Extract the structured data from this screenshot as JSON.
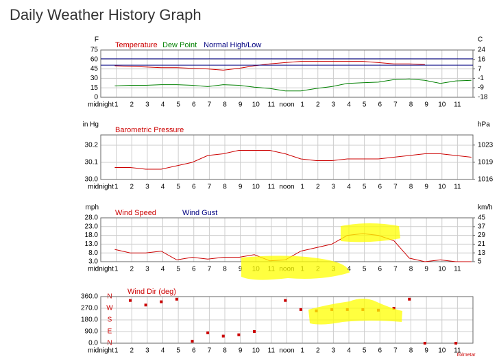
{
  "title": "Daily Weather History Graph",
  "footer_note": "Ifolmetar",
  "chart_data": [
    {
      "type": "line",
      "y_label": "F",
      "y2_label": "C",
      "grid": true,
      "xlim": [
        0,
        24
      ],
      "xticks": [
        {
          "value": 0,
          "label": "midnight"
        },
        1,
        2,
        3,
        4,
        5,
        6,
        7,
        8,
        9,
        10,
        11,
        {
          "value": 12,
          "label": "noon"
        },
        {
          "value": 13,
          "label": "1"
        },
        {
          "value": 14,
          "label": "2"
        },
        {
          "value": 15,
          "label": "3"
        },
        {
          "value": 16,
          "label": "4"
        },
        {
          "value": 17,
          "label": "5"
        },
        {
          "value": 18,
          "label": "6"
        },
        {
          "value": 19,
          "label": "7"
        },
        {
          "value": 20,
          "label": "8"
        },
        {
          "value": 21,
          "label": "9"
        },
        {
          "value": 22,
          "label": "10"
        },
        {
          "value": 23,
          "label": "11"
        }
      ],
      "ylim": [
        0,
        75
      ],
      "yticks": [
        75,
        60,
        45,
        30,
        15,
        0
      ],
      "y2lim": [
        -17.8,
        23.9
      ],
      "y2ticks": [
        {
          "value": 23.9,
          "label": "24"
        },
        {
          "value": 15.6,
          "label": "16"
        },
        {
          "value": 7.2,
          "label": "7"
        },
        {
          "value": -1.1,
          "label": "-1"
        },
        {
          "value": -9.4,
          "label": "-9"
        },
        {
          "value": -17.8,
          "label": "-18"
        }
      ],
      "series": [
        {
          "name": "Temperature",
          "color": "#cc0000",
          "x": [
            0.9,
            1.9,
            2.9,
            3.9,
            4.9,
            5.9,
            6.9,
            7.9,
            8.9,
            9.9,
            10.9,
            11.9,
            12.9,
            13.9,
            14.9,
            15.9,
            16.9,
            17.9,
            18.9,
            19.9,
            20.9
          ],
          "values": [
            50,
            49,
            48,
            47,
            47,
            46,
            45,
            43,
            46,
            50,
            53,
            55,
            57,
            57,
            57,
            57,
            57,
            55,
            53,
            53,
            52
          ]
        },
        {
          "name": "Dew Point",
          "color": "#008000",
          "x": [
            0.9,
            1.9,
            2.9,
            3.9,
            4.9,
            5.9,
            6.9,
            7.9,
            8.9,
            9.9,
            10.9,
            11.9,
            12.9,
            13.9,
            14.9,
            15.9,
            16.9,
            17.9,
            18.9,
            19.9,
            20.9,
            21.9,
            22.9,
            23.9
          ],
          "values": [
            18,
            19,
            19,
            20,
            20,
            19,
            17,
            20,
            19,
            16,
            14,
            10,
            10,
            14,
            17,
            22,
            23,
            24,
            28,
            29,
            27,
            22,
            26,
            27
          ]
        },
        {
          "name": "Normal High/Low",
          "color": "#000080",
          "high": 61,
          "low": 51
        }
      ]
    },
    {
      "type": "line",
      "y_label": "in Hg",
      "y2_label": "hPa",
      "grid": true,
      "xlim": [
        0,
        24
      ],
      "xticks": [
        {
          "value": 0,
          "label": "midnight"
        },
        1,
        2,
        3,
        4,
        5,
        6,
        7,
        8,
        9,
        10,
        11,
        {
          "value": 12,
          "label": "noon"
        },
        {
          "value": 13,
          "label": "1"
        },
        {
          "value": 14,
          "label": "2"
        },
        {
          "value": 15,
          "label": "3"
        },
        {
          "value": 16,
          "label": "4"
        },
        {
          "value": 17,
          "label": "5"
        },
        {
          "value": 18,
          "label": "6"
        },
        {
          "value": 19,
          "label": "7"
        },
        {
          "value": 20,
          "label": "8"
        },
        {
          "value": 21,
          "label": "9"
        },
        {
          "value": 22,
          "label": "10"
        },
        {
          "value": 23,
          "label": "11"
        }
      ],
      "ylim": [
        30.0,
        30.26
      ],
      "yticks": [
        30.2,
        30.1,
        {
          "value": 30.0,
          "label": "30.0"
        }
      ],
      "y2lim": [
        1015.9,
        1024.7
      ],
      "y2ticks": [
        {
          "value": 1022.7,
          "label": "1023"
        },
        {
          "value": 1019.3,
          "label": "1019"
        },
        {
          "value": 1015.9,
          "label": "1016"
        }
      ],
      "series": [
        {
          "name": "Barometric Pressure",
          "color": "#cc0000",
          "x": [
            0.9,
            1.9,
            2.9,
            3.9,
            4.9,
            5.9,
            6.9,
            7.9,
            8.9,
            9.9,
            10.9,
            11.9,
            12.9,
            13.9,
            14.9,
            15.9,
            16.9,
            17.9,
            18.9,
            19.9,
            20.9,
            21.9,
            22.9,
            23.9
          ],
          "values": [
            30.07,
            30.07,
            30.06,
            30.06,
            30.08,
            30.1,
            30.14,
            30.15,
            30.17,
            30.17,
            30.17,
            30.15,
            30.12,
            30.11,
            30.11,
            30.12,
            30.12,
            30.12,
            30.13,
            30.14,
            30.15,
            30.15,
            30.14,
            30.13
          ]
        }
      ]
    },
    {
      "type": "line",
      "y_label": "mph",
      "y2_label": "km/h",
      "grid": true,
      "xlim": [
        0,
        24
      ],
      "xticks": [
        {
          "value": 0,
          "label": "midnight"
        },
        1,
        2,
        3,
        4,
        5,
        6,
        7,
        8,
        9,
        10,
        11,
        {
          "value": 12,
          "label": "noon"
        },
        {
          "value": 13,
          "label": "1"
        },
        {
          "value": 14,
          "label": "2"
        },
        {
          "value": 15,
          "label": "3"
        },
        {
          "value": 16,
          "label": "4"
        },
        {
          "value": 17,
          "label": "5"
        },
        {
          "value": 18,
          "label": "6"
        },
        {
          "value": 19,
          "label": "7"
        },
        {
          "value": 20,
          "label": "8"
        },
        {
          "value": 21,
          "label": "9"
        },
        {
          "value": 22,
          "label": "10"
        },
        {
          "value": 23,
          "label": "11"
        }
      ],
      "ylim": [
        3,
        28
      ],
      "yticks": [
        {
          "value": 28,
          "label": "28.0"
        },
        {
          "value": 23,
          "label": "23.0"
        },
        {
          "value": 18,
          "label": "18.0"
        },
        {
          "value": 13,
          "label": "13.0"
        },
        {
          "value": 8,
          "label": "8.0"
        },
        {
          "value": 3,
          "label": "3.0"
        }
      ],
      "y2lim": [
        4.8,
        45.1
      ],
      "y2ticks": [
        {
          "value": 45.1,
          "label": "45"
        },
        {
          "value": 37.0,
          "label": "37"
        },
        {
          "value": 29.0,
          "label": "29"
        },
        {
          "value": 20.9,
          "label": "21"
        },
        {
          "value": 12.9,
          "label": "13"
        },
        {
          "value": 4.8,
          "label": "5"
        }
      ],
      "series": [
        {
          "name": "Wind Speed",
          "color": "#cc0000",
          "x": [
            0.9,
            1.9,
            2.9,
            3.9,
            4.9,
            5.9,
            6.9,
            7.9,
            8.9,
            9.9,
            10.9,
            11.9,
            12.9,
            13.9,
            14.9,
            15.9,
            16.9,
            17.9,
            18.9,
            19.9,
            20.9,
            21.9,
            22.9,
            23.9
          ],
          "values": [
            10,
            8,
            8,
            9,
            4,
            5.5,
            4.5,
            5.5,
            5.5,
            7,
            3.5,
            4,
            9,
            11,
            13,
            18,
            19,
            18,
            15,
            5,
            3,
            4,
            3,
            3
          ]
        },
        {
          "name": "Wind Gust",
          "color": "#000080",
          "x": [],
          "values": []
        }
      ]
    },
    {
      "type": "scatter",
      "grid": true,
      "xlim": [
        0,
        24
      ],
      "xticks": [
        {
          "value": 0,
          "label": "midnight"
        },
        1,
        2,
        3,
        4,
        5,
        6,
        7,
        8,
        9,
        10,
        11,
        {
          "value": 12,
          "label": "noon"
        },
        {
          "value": 13,
          "label": "1"
        },
        {
          "value": 14,
          "label": "2"
        },
        {
          "value": 15,
          "label": "3"
        },
        {
          "value": 16,
          "label": "4"
        },
        {
          "value": 17,
          "label": "5"
        },
        {
          "value": 18,
          "label": "6"
        },
        {
          "value": 19,
          "label": "7"
        },
        {
          "value": 20,
          "label": "8"
        },
        {
          "value": 21,
          "label": "9"
        },
        {
          "value": 22,
          "label": "10"
        },
        {
          "value": 23,
          "label": "11"
        }
      ],
      "ylim": [
        0,
        360
      ],
      "yticks": [
        {
          "value": 360,
          "label": "360.0"
        },
        {
          "value": 270,
          "label": "270.0"
        },
        {
          "value": 180,
          "label": "180.0"
        },
        {
          "value": 90,
          "label": "90.0"
        },
        {
          "value": 0,
          "label": "0.0"
        }
      ],
      "dir_labels": [
        {
          "value": 360,
          "label": "N"
        },
        {
          "value": 270,
          "label": "W"
        },
        {
          "value": 180,
          "label": "S"
        },
        {
          "value": 90,
          "label": "E"
        },
        {
          "value": 0,
          "label": "N"
        }
      ],
      "series": [
        {
          "name": "Wind Dir (deg)",
          "color": "#cc0000",
          "x": [
            1.9,
            2.9,
            3.9,
            4.9,
            5.9,
            6.9,
            7.9,
            8.9,
            9.9,
            11.9,
            12.9,
            13.9,
            14.9,
            15.9,
            16.9,
            17.9,
            18.9,
            19.9,
            20.9,
            22.9
          ],
          "values": [
            330,
            295,
            320,
            340,
            15,
            80,
            55,
            65,
            90,
            330,
            260,
            250,
            260,
            260,
            260,
            255,
            270,
            340,
            0,
            0
          ]
        }
      ]
    }
  ]
}
